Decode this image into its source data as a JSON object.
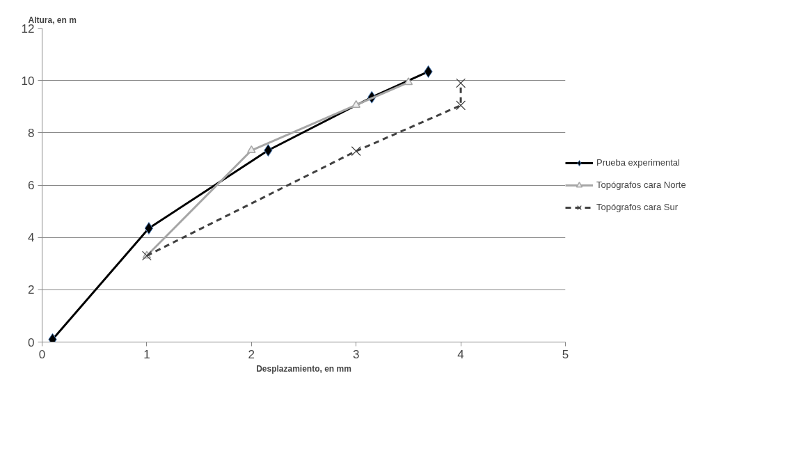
{
  "chart_data": {
    "type": "line",
    "xlabel": "Desplazamiento, en mm",
    "ylabel": "Altura, en m",
    "xlim": [
      0,
      5
    ],
    "xticks": [
      0,
      1,
      2,
      3,
      4,
      5
    ],
    "ylim": [
      0,
      12
    ],
    "yticks": [
      0,
      2,
      4,
      6,
      8,
      10,
      12
    ],
    "grid": "y",
    "legend": "right",
    "series": [
      {
        "name": "Prueba experimental",
        "color": "#000000",
        "marker": "diamond",
        "line_style": "solid",
        "x": [
          0.1,
          1.02,
          2.16,
          3.15,
          3.69
        ],
        "values": [
          0.1,
          4.35,
          7.33,
          9.36,
          10.34
        ]
      },
      {
        "name": "Topógrafos cara Norte",
        "color": "#a6a6a6",
        "marker": "triangle",
        "line_style": "solid",
        "x": [
          1.0,
          2.0,
          3.0,
          3.5
        ],
        "values": [
          3.3,
          7.33,
          9.06,
          9.93
        ]
      },
      {
        "name": "Topógrafos cara Sur",
        "color": "#404040",
        "marker": "cross",
        "line_style": "dashed",
        "x": [
          1.0,
          3.0,
          4.0,
          4.0
        ],
        "values": [
          3.3,
          7.3,
          9.05,
          9.9
        ]
      }
    ]
  }
}
